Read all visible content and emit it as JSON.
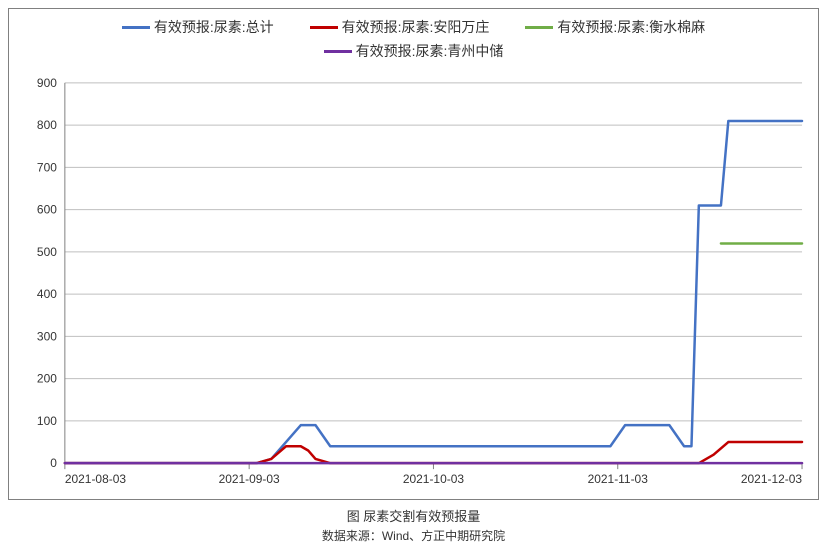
{
  "footer": {
    "title": "图  尿素交割有效预报量",
    "source": "数据来源：Wind、方正中期研究院"
  },
  "chart": {
    "type": "line",
    "background_color": "#ffffff",
    "border_color": "#808080",
    "grid_color": "#bfbfbf",
    "axis_line_color": "#808080",
    "axis_font_size": 12,
    "legend_font_size": 14,
    "ylim": [
      0,
      900
    ],
    "ytick_step": 100,
    "yticks": [
      0,
      100,
      200,
      300,
      400,
      500,
      600,
      700,
      800,
      900
    ],
    "xticks": [
      {
        "pos": 0.0,
        "label": "2021-08-03"
      },
      {
        "pos": 0.25,
        "label": "2021-09-03"
      },
      {
        "pos": 0.5,
        "label": "2021-10-03"
      },
      {
        "pos": 0.75,
        "label": "2021-11-03"
      },
      {
        "pos": 1.0,
        "label": "2021-12-03"
      }
    ],
    "line_width": 2.5,
    "series": [
      {
        "name": "有效预报:尿素:总计",
        "color": "#4472c4",
        "points": [
          [
            0.0,
            0
          ],
          [
            0.04,
            0
          ],
          [
            0.08,
            0
          ],
          [
            0.12,
            0
          ],
          [
            0.16,
            0
          ],
          [
            0.2,
            0
          ],
          [
            0.24,
            0
          ],
          [
            0.26,
            0
          ],
          [
            0.28,
            10
          ],
          [
            0.3,
            50
          ],
          [
            0.32,
            90
          ],
          [
            0.34,
            90
          ],
          [
            0.36,
            40
          ],
          [
            0.38,
            40
          ],
          [
            0.42,
            40
          ],
          [
            0.46,
            40
          ],
          [
            0.5,
            40
          ],
          [
            0.54,
            40
          ],
          [
            0.58,
            40
          ],
          [
            0.62,
            40
          ],
          [
            0.66,
            40
          ],
          [
            0.7,
            40
          ],
          [
            0.72,
            40
          ],
          [
            0.74,
            40
          ],
          [
            0.76,
            90
          ],
          [
            0.78,
            90
          ],
          [
            0.8,
            90
          ],
          [
            0.82,
            90
          ],
          [
            0.84,
            40
          ],
          [
            0.85,
            40
          ],
          [
            0.86,
            610
          ],
          [
            0.88,
            610
          ],
          [
            0.89,
            610
          ],
          [
            0.9,
            810
          ],
          [
            0.92,
            810
          ],
          [
            0.94,
            810
          ],
          [
            0.96,
            810
          ],
          [
            0.98,
            810
          ],
          [
            1.0,
            810
          ]
        ]
      },
      {
        "name": "有效预报:尿素:安阳万庄",
        "color": "#c00000",
        "points": [
          [
            0.0,
            0
          ],
          [
            0.04,
            0
          ],
          [
            0.08,
            0
          ],
          [
            0.12,
            0
          ],
          [
            0.16,
            0
          ],
          [
            0.2,
            0
          ],
          [
            0.24,
            0
          ],
          [
            0.26,
            0
          ],
          [
            0.28,
            10
          ],
          [
            0.3,
            40
          ],
          [
            0.32,
            40
          ],
          [
            0.33,
            30
          ],
          [
            0.34,
            10
          ],
          [
            0.36,
            0
          ],
          [
            0.4,
            0
          ],
          [
            0.44,
            0
          ],
          [
            0.48,
            0
          ],
          [
            0.52,
            0
          ],
          [
            0.56,
            0
          ],
          [
            0.6,
            0
          ],
          [
            0.64,
            0
          ],
          [
            0.68,
            0
          ],
          [
            0.72,
            0
          ],
          [
            0.76,
            0
          ],
          [
            0.8,
            0
          ],
          [
            0.84,
            0
          ],
          [
            0.86,
            0
          ],
          [
            0.88,
            20
          ],
          [
            0.9,
            50
          ],
          [
            0.92,
            50
          ],
          [
            0.94,
            50
          ],
          [
            0.96,
            50
          ],
          [
            0.98,
            50
          ],
          [
            1.0,
            50
          ]
        ]
      },
      {
        "name": "有效预报:尿素:衡水棉麻",
        "color": "#70ad47",
        "points": [
          [
            0.89,
            520
          ],
          [
            0.9,
            520
          ],
          [
            0.92,
            520
          ],
          [
            0.94,
            520
          ],
          [
            0.96,
            520
          ],
          [
            0.98,
            520
          ],
          [
            1.0,
            520
          ]
        ]
      },
      {
        "name": "有效预报:尿素:青州中储",
        "color": "#7030a0",
        "points": [
          [
            0.0,
            0
          ],
          [
            0.1,
            0
          ],
          [
            0.2,
            0
          ],
          [
            0.3,
            0
          ],
          [
            0.4,
            0
          ],
          [
            0.5,
            0
          ],
          [
            0.6,
            0
          ],
          [
            0.7,
            0
          ],
          [
            0.8,
            0
          ],
          [
            0.9,
            0
          ],
          [
            1.0,
            0
          ]
        ]
      }
    ]
  }
}
